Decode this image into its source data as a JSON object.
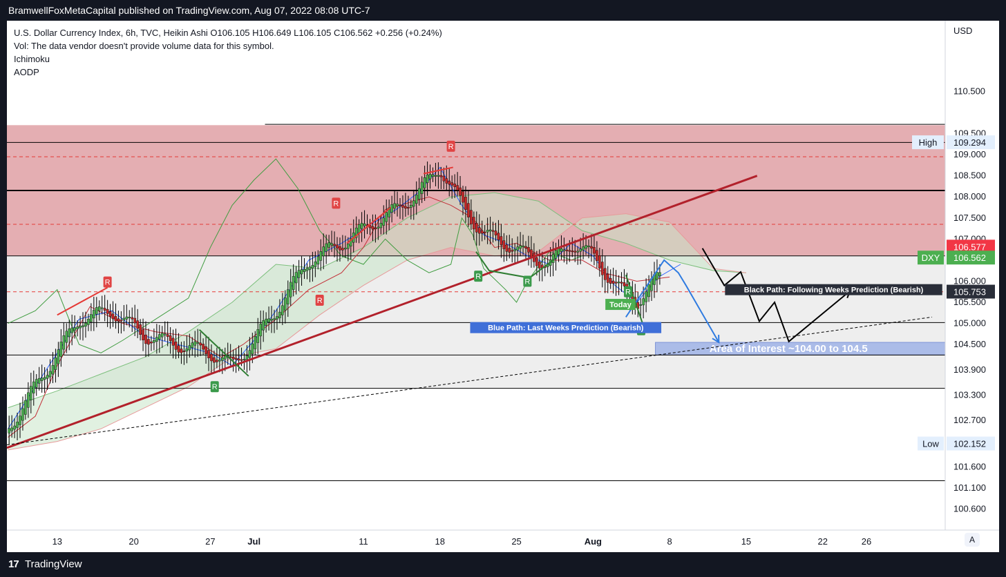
{
  "header": {
    "published_line": "BramwellFoxMetaCapital published on TradingView.com, Aug 07, 2022 08:08 UTC-7"
  },
  "legend": {
    "title_line": "U.S. Dollar Currency Index, 6h, TVC, Heikin Ashi  O106.105  H106.649  L106.105  C106.562  +0.256 (+0.24%)",
    "vol_line": "Vol: The data vendor doesn't provide volume data for this symbol.",
    "indicator_1": "Ichimoku",
    "indicator_2": "AODP"
  },
  "footer": {
    "brand_glyph": "17",
    "brand": "TradingView",
    "auto_button": "A"
  },
  "colors": {
    "resistance_zone": "#d98f94",
    "support_zone": "#eeeeee",
    "interest_zone": "#9fb3e6",
    "trend_line": "#b2212b",
    "blue_path": "#2f7be0",
    "black_path": "#000000",
    "ichimoku_green": "#3f9c3f",
    "ichimoku_red": "#c23038",
    "candle_up": "#4caf50",
    "candle_down": "#c62828",
    "badge_red": "#e04444",
    "badge_green": "#3b9a4b"
  },
  "chart_data": {
    "type": "candlestick",
    "symbol": "DXY",
    "timeframe": "6h",
    "currency_label": "USD",
    "price_axis": {
      "range": [
        100.1,
        110.9
      ],
      "ticks": [
        "110.500",
        "109.500",
        "109.000",
        "108.500",
        "108.000",
        "107.500",
        "107.000",
        "106.000",
        "105.500",
        "105.000",
        "104.500",
        "103.900",
        "103.300",
        "102.700",
        "101.600",
        "101.100",
        "100.600"
      ],
      "tick_values": [
        110.5,
        109.5,
        109.0,
        108.5,
        108.0,
        107.5,
        107.0,
        106.0,
        105.5,
        105.0,
        104.5,
        103.9,
        103.3,
        102.7,
        101.6,
        101.1,
        100.6
      ]
    },
    "time_axis": {
      "labels": [
        {
          "text": "13",
          "day": 0
        },
        {
          "text": "20",
          "day": 7
        },
        {
          "text": "27",
          "day": 14
        },
        {
          "text": "Jul",
          "day": 18
        },
        {
          "text": "11",
          "day": 28
        },
        {
          "text": "18",
          "day": 35
        },
        {
          "text": "25",
          "day": 42
        },
        {
          "text": "Aug",
          "day": 49
        },
        {
          "text": "8",
          "day": 56
        },
        {
          "text": "15",
          "day": 63
        },
        {
          "text": "22",
          "day": 70
        },
        {
          "text": "26",
          "day": 74
        }
      ]
    },
    "price_labels": [
      {
        "name": "High",
        "value": "109.294",
        "y": 109.294,
        "style": "light"
      },
      {
        "name": "",
        "value": "106.577",
        "y": 106.82,
        "style": "red"
      },
      {
        "name": "DXY",
        "value": "106.562",
        "y": 106.56,
        "style": "green"
      },
      {
        "name": "",
        "value": "105.753",
        "y": 105.753,
        "style": "dark"
      },
      {
        "name": "Low",
        "value": "102.152",
        "y": 102.152,
        "style": "light"
      }
    ],
    "zones": [
      {
        "name": "resistance",
        "from": 106.6,
        "to": 109.7
      },
      {
        "name": "support",
        "from": 103.46,
        "to": 106.6
      },
      {
        "name": "area_of_interest",
        "from": 104.25,
        "to": 104.55,
        "label": "Area of Interest ~104.00 to 104.5"
      }
    ],
    "horizontal_lines": [
      {
        "y": 109.72,
        "style": "solid"
      },
      {
        "y": 109.29,
        "style": "solid"
      },
      {
        "y": 108.95,
        "style": "dashed-red"
      },
      {
        "y": 108.15,
        "style": "solid-thick"
      },
      {
        "y": 107.35,
        "style": "dashed-red"
      },
      {
        "y": 106.6,
        "style": "solid"
      },
      {
        "y": 105.75,
        "style": "dashed-red"
      },
      {
        "y": 105.02,
        "style": "solid"
      },
      {
        "y": 104.25,
        "style": "solid"
      },
      {
        "y": 103.46,
        "style": "solid"
      },
      {
        "y": 101.27,
        "style": "solid"
      }
    ],
    "annotations": [
      {
        "text": "Today",
        "day": 51.5,
        "y": 105.45,
        "style": "green-badge"
      },
      {
        "text": "Blue Path: Last Weeks Prediction (Bearish)",
        "day": 46.5,
        "y": 104.9,
        "style": "blue-badge"
      },
      {
        "text": "Black Path: Following Weeks Prediction (Bearish)",
        "day": 71,
        "y": 105.8,
        "style": "dark-badge"
      }
    ],
    "signal_badges": [
      {
        "text": "R",
        "type": "red",
        "day": 4.6,
        "y": 105.98
      },
      {
        "text": "R",
        "type": "red",
        "day": 25.5,
        "y": 107.85
      },
      {
        "text": "R",
        "type": "red",
        "day": 36,
        "y": 109.2
      },
      {
        "text": "R",
        "type": "red",
        "day": 24,
        "y": 105.55
      },
      {
        "text": "R",
        "type": "green",
        "day": 14.4,
        "y": 103.5
      },
      {
        "text": "R",
        "type": "green",
        "day": 38.5,
        "y": 106.12
      },
      {
        "text": "R",
        "type": "green",
        "day": 43,
        "y": 106.0
      },
      {
        "text": "R",
        "type": "green",
        "day": 52.2,
        "y": 105.75
      },
      {
        "text": "R",
        "type": "green",
        "day": 53.4,
        "y": 104.85
      }
    ],
    "trend_lines": [
      {
        "name": "rising trendline",
        "points": [
          [
            -4.6,
            102.05
          ],
          [
            64,
            108.5
          ]
        ]
      },
      {
        "name": "lower dashed trendline",
        "points": [
          [
            -4.6,
            102.12
          ],
          [
            80,
            105.15
          ]
        ]
      }
    ],
    "paths": [
      {
        "name": "blue path",
        "points": [
          [
            52,
            105.15
          ],
          [
            55.5,
            106.5
          ],
          [
            56.8,
            106.2
          ],
          [
            57.5,
            105.9
          ],
          [
            60.5,
            104.55
          ]
        ]
      },
      {
        "name": "black path",
        "points": [
          [
            59,
            106.78
          ],
          [
            61,
            105.9
          ],
          [
            62.5,
            106.22
          ],
          [
            64.2,
            105.05
          ],
          [
            65.6,
            105.5
          ],
          [
            66.9,
            104.57
          ],
          [
            72.5,
            105.77
          ]
        ]
      },
      {
        "name": "red zigzag 1",
        "points": [
          [
            0,
            105.2
          ],
          [
            4.6,
            105.85
          ]
        ]
      },
      {
        "name": "red zigzag 2",
        "points": [
          [
            26.5,
            106.9
          ],
          [
            30.5,
            107.75
          ]
        ]
      },
      {
        "name": "red zigzag 3",
        "points": [
          [
            33.5,
            108.55
          ],
          [
            36.2,
            108.7
          ]
        ]
      },
      {
        "name": "green zigzag 1",
        "points": [
          [
            13,
            104.85
          ],
          [
            17.5,
            103.75
          ]
        ]
      },
      {
        "name": "green zigzag 2",
        "points": [
          [
            38.3,
            106.7
          ],
          [
            39.5,
            106.25
          ],
          [
            43.2,
            106.08
          ],
          [
            45.5,
            106.53
          ]
        ]
      },
      {
        "name": "green zigzag 3",
        "points": [
          [
            52,
            106.15
          ],
          [
            53.5,
            105.02
          ]
        ]
      }
    ],
    "ichimoku": {
      "tenkan": [
        [
          -4.5,
          102.5
        ],
        [
          -1,
          103.9
        ],
        [
          2,
          105.1
        ],
        [
          5,
          105.3
        ],
        [
          8,
          104.7
        ],
        [
          11,
          104.5
        ],
        [
          14,
          104.3
        ],
        [
          16,
          104.0
        ],
        [
          18,
          104.6
        ],
        [
          20,
          105.3
        ],
        [
          23,
          106.5
        ],
        [
          26,
          106.9
        ],
        [
          29,
          107.4
        ],
        [
          31,
          107.7
        ],
        [
          33,
          108.1
        ],
        [
          35,
          108.7
        ],
        [
          37,
          107.8
        ],
        [
          39,
          107.1
        ],
        [
          41,
          106.9
        ],
        [
          43,
          106.6
        ],
        [
          45,
          106.4
        ],
        [
          47,
          106.9
        ],
        [
          49,
          106.6
        ],
        [
          51,
          105.9
        ],
        [
          53,
          105.5
        ],
        [
          55,
          106.1
        ],
        [
          57,
          106.4
        ]
      ],
      "kijun": [
        [
          -4.5,
          102.3
        ],
        [
          -2,
          102.8
        ],
        [
          0,
          104.0
        ],
        [
          3,
          105.4
        ],
        [
          6,
          105.0
        ],
        [
          9,
          104.8
        ],
        [
          12,
          104.7
        ],
        [
          15,
          104.2
        ],
        [
          17,
          104.5
        ],
        [
          20,
          105.1
        ],
        [
          23,
          105.8
        ],
        [
          26,
          106.2
        ],
        [
          28,
          106.8
        ],
        [
          30,
          107.7
        ],
        [
          34,
          108.0
        ],
        [
          36,
          107.8
        ],
        [
          38,
          107.5
        ],
        [
          40,
          106.8
        ],
        [
          42,
          106.9
        ],
        [
          45,
          106.5
        ],
        [
          48,
          106.5
        ],
        [
          50,
          106.2
        ],
        [
          53,
          106.0
        ],
        [
          56,
          106.1
        ]
      ],
      "chikou": [
        [
          -4.5,
          105.0
        ],
        [
          -2,
          105.3
        ],
        [
          0,
          105.8
        ],
        [
          2,
          104.5
        ],
        [
          4,
          104.3
        ],
        [
          6,
          104.6
        ],
        [
          9,
          105.1
        ],
        [
          12,
          105.6
        ],
        [
          14,
          106.8
        ],
        [
          16,
          107.8
        ],
        [
          18,
          108.4
        ],
        [
          20,
          108.9
        ],
        [
          22,
          108.2
        ],
        [
          24,
          107.2
        ],
        [
          26,
          106.6
        ],
        [
          28,
          106.4
        ],
        [
          30,
          107.0
        ],
        [
          32,
          106.5
        ],
        [
          34,
          106.2
        ],
        [
          36,
          106.4
        ],
        [
          37,
          107.5
        ],
        [
          38,
          107.1
        ],
        [
          39,
          106.3
        ],
        [
          41,
          105.8
        ],
        [
          42,
          105.5
        ],
        [
          43,
          106.0
        ],
        [
          45,
          106.7
        ],
        [
          47,
          106.5
        ],
        [
          48,
          106.6
        ]
      ],
      "span_a": [
        [
          -4.5,
          103.0
        ],
        [
          0,
          103.4
        ],
        [
          4,
          103.8
        ],
        [
          8,
          104.2
        ],
        [
          12,
          104.8
        ],
        [
          16,
          105.5
        ],
        [
          20,
          106.4
        ],
        [
          24,
          106.3
        ],
        [
          28,
          106.8
        ],
        [
          32,
          107.5
        ],
        [
          36,
          108.0
        ],
        [
          40,
          108.1
        ],
        [
          44,
          107.9
        ],
        [
          48,
          107.2
        ],
        [
          52,
          106.9
        ],
        [
          56,
          106.5
        ],
        [
          60,
          106.25
        ],
        [
          63,
          106.2
        ]
      ],
      "span_b": [
        [
          -4.5,
          102.0
        ],
        [
          0,
          102.2
        ],
        [
          4,
          102.5
        ],
        [
          8,
          103.0
        ],
        [
          12,
          103.5
        ],
        [
          16,
          104.2
        ],
        [
          20,
          104.4
        ],
        [
          24,
          105.2
        ],
        [
          28,
          105.9
        ],
        [
          32,
          106.5
        ],
        [
          36,
          106.8
        ],
        [
          40,
          106.6
        ],
        [
          44,
          106.7
        ],
        [
          48,
          107.5
        ],
        [
          52,
          107.6
        ],
        [
          56,
          107.4
        ],
        [
          60,
          106.3
        ],
        [
          63,
          106.2
        ]
      ]
    }
  }
}
